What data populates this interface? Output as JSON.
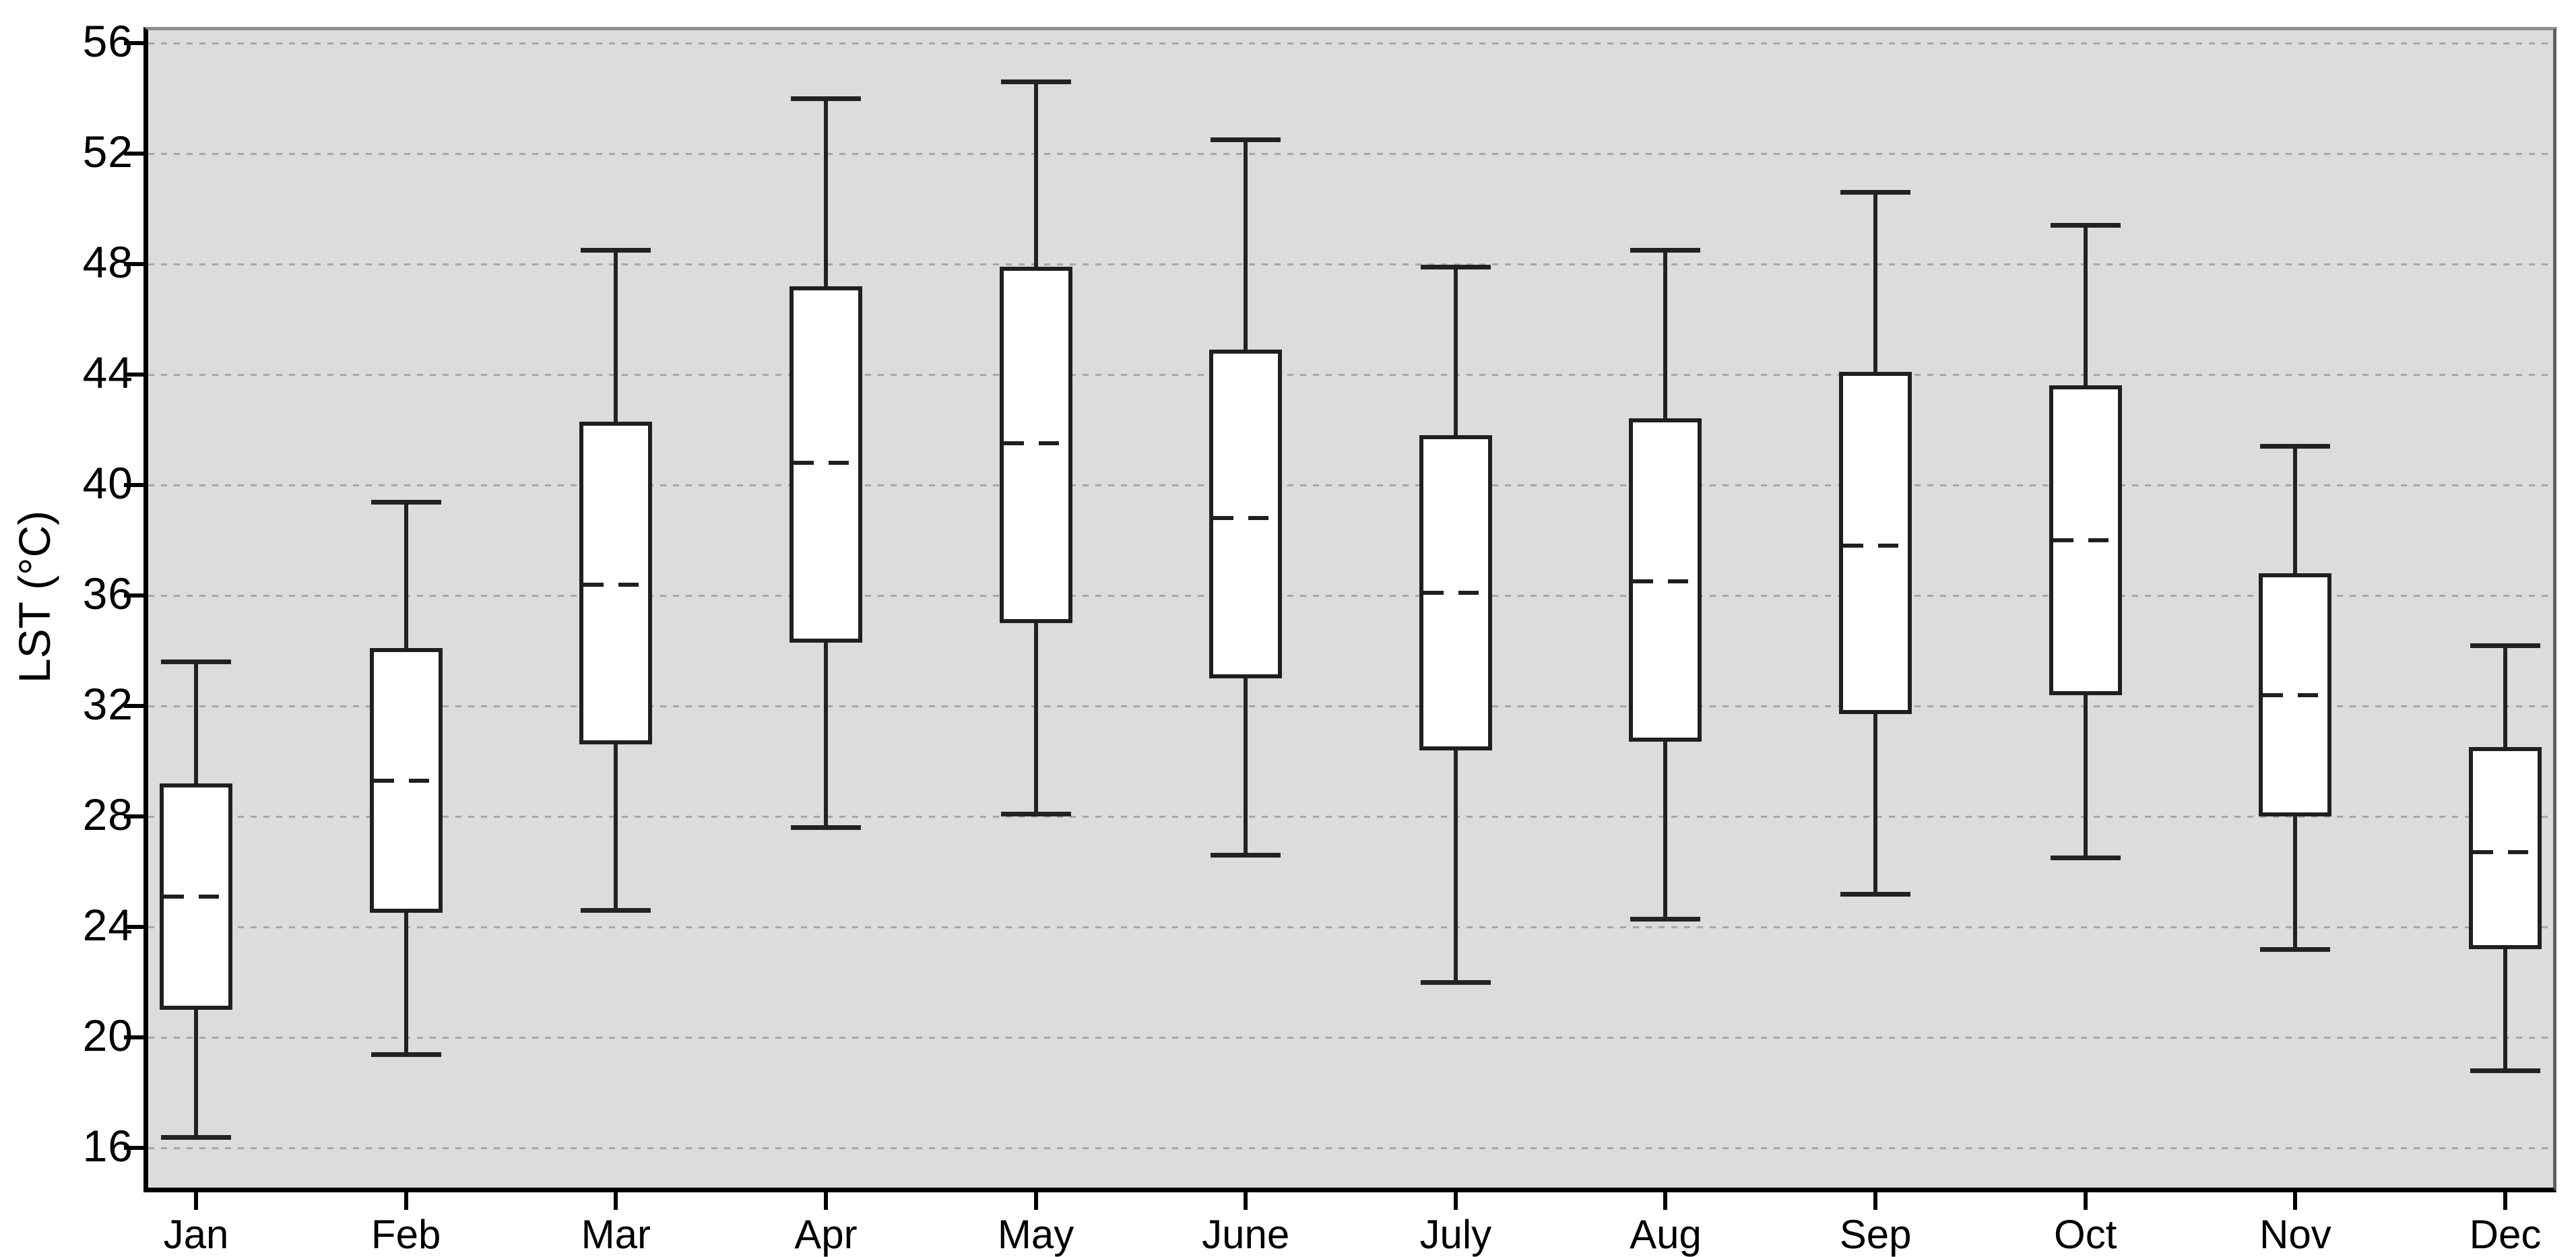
{
  "chart_data": {
    "type": "boxplot",
    "title": "",
    "xlabel": "",
    "ylabel": "LST (°C)",
    "legend": "none",
    "grid": "horizontal-dashed",
    "yticks": [
      56,
      52,
      48,
      44,
      40,
      36,
      32,
      28,
      24,
      20,
      16
    ],
    "ylim": [
      14.6,
      56.5
    ],
    "categories": [
      "Jan",
      "Feb",
      "Mar",
      "Apr",
      "May",
      "June",
      "July",
      "Aug",
      "Sep",
      "Oct",
      "Nov",
      "Dec"
    ],
    "series": [
      {
        "label": "Jan",
        "min": 16.4,
        "q1": 21.0,
        "median": 25.1,
        "q3": 29.2,
        "max": 33.6
      },
      {
        "label": "Feb",
        "min": 19.4,
        "q1": 24.5,
        "median": 29.3,
        "q3": 34.1,
        "max": 39.4
      },
      {
        "label": "Mar",
        "min": 24.6,
        "q1": 30.6,
        "median": 36.4,
        "q3": 42.3,
        "max": 48.5
      },
      {
        "label": "Apr",
        "min": 27.6,
        "q1": 34.3,
        "median": 40.8,
        "q3": 47.2,
        "max": 54.0
      },
      {
        "label": "May",
        "min": 28.1,
        "q1": 35.0,
        "median": 41.5,
        "q3": 47.9,
        "max": 54.6
      },
      {
        "label": "June",
        "min": 26.6,
        "q1": 33.0,
        "median": 38.8,
        "q3": 44.9,
        "max": 52.5
      },
      {
        "label": "July",
        "min": 22.0,
        "q1": 30.4,
        "median": 36.1,
        "q3": 41.8,
        "max": 47.9
      },
      {
        "label": "Aug",
        "min": 24.3,
        "q1": 30.7,
        "median": 36.5,
        "q3": 42.4,
        "max": 48.5
      },
      {
        "label": "Sep",
        "min": 25.2,
        "q1": 31.7,
        "median": 37.8,
        "q3": 44.1,
        "max": 50.6
      },
      {
        "label": "Oct",
        "min": 26.5,
        "q1": 32.4,
        "median": 38.0,
        "q3": 43.6,
        "max": 49.4
      },
      {
        "label": "Nov",
        "min": 23.2,
        "q1": 28.0,
        "median": 32.4,
        "q3": 36.8,
        "max": 41.4
      },
      {
        "label": "Dec",
        "min": 18.8,
        "q1": 23.2,
        "median": 26.7,
        "q3": 30.5,
        "max": 34.2
      }
    ]
  },
  "style": {
    "plot_bg": "#dcdcdc",
    "grid_color": "#a6a6a6",
    "box_fill": "#ffffff",
    "box_border": "#1f1f1f",
    "whisker_color": "#222222",
    "axis_color": "#000000",
    "text_color": "#000000"
  }
}
